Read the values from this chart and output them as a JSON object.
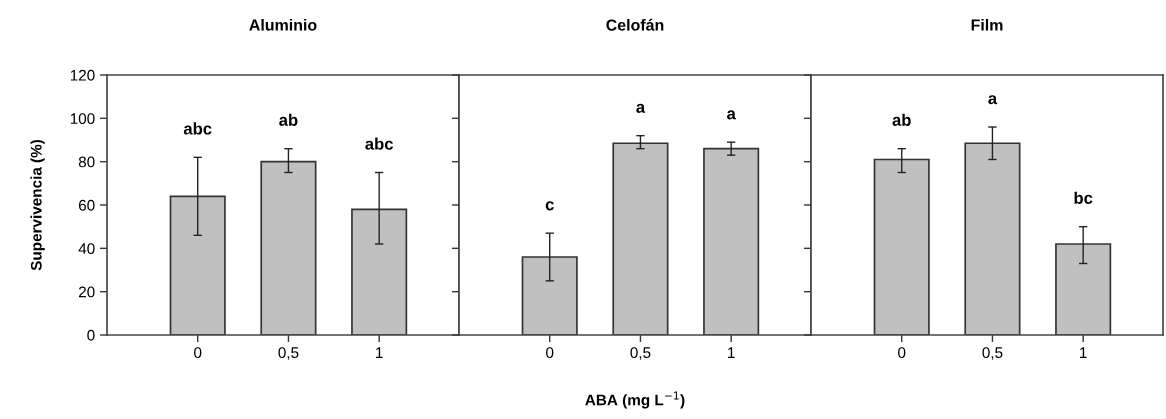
{
  "chart_data": [
    {
      "type": "bar",
      "title": "Aluminio",
      "ylabel": "Supervivencia (%)",
      "categories": [
        "0",
        "0,5",
        "1"
      ],
      "values": [
        64,
        80,
        58
      ],
      "errors": [
        [
          46,
          82
        ],
        [
          75,
          86
        ],
        [
          42,
          75
        ]
      ],
      "color": "#c0c0c0",
      "ylim": [
        0,
        120
      ],
      "yticks": [
        0,
        20,
        40,
        60,
        80,
        100,
        120
      ],
      "grid": false,
      "legend": false,
      "annotations": [
        "abc",
        "ab",
        "abc"
      ]
    },
    {
      "type": "bar",
      "title": "Celofán",
      "xlabel": "ABA (mg L$^{−1}$)",
      "categories": [
        "0",
        "0,5",
        "1"
      ],
      "values": [
        36,
        88.5,
        86
      ],
      "errors": [
        [
          25,
          47
        ],
        [
          86,
          92
        ],
        [
          83,
          89
        ]
      ],
      "color": "#c0c0c0",
      "ylim": [
        0,
        120
      ],
      "yticks": [
        0,
        20,
        40,
        60,
        80,
        100,
        120
      ],
      "tick_labels": "x",
      "grid": false,
      "legend": false,
      "annotations": [
        "c",
        "a",
        "a"
      ]
    },
    {
      "type": "bar",
      "title": "Film",
      "categories": [
        "0",
        "0,5",
        "1"
      ],
      "values": [
        81,
        88.5,
        42
      ],
      "errors": [
        [
          75,
          86
        ],
        [
          81,
          96
        ],
        [
          33,
          50
        ]
      ],
      "color": "#c0c0c0",
      "ylim": [
        0,
        120
      ],
      "yticks": [
        0,
        20,
        40,
        60,
        80,
        100,
        120
      ],
      "tick_labels": "x",
      "grid": false,
      "legend": false,
      "annotations": [
        "ab",
        "a",
        "bc"
      ]
    }
  ]
}
